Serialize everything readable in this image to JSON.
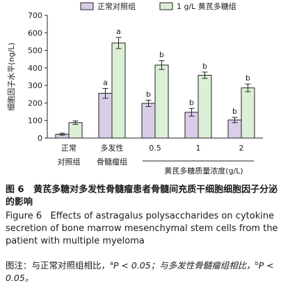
{
  "chart_data": {
    "type": "bar",
    "ylabel": "细胞因子水平(ng/L)",
    "ylim": [
      0,
      700
    ],
    "yticks": [
      0,
      100,
      200,
      300,
      400,
      500,
      600,
      700
    ],
    "legend_position": "top",
    "categories": [
      [
        "正常",
        "对照组"
      ],
      [
        "多发性",
        "骨髓瘤组"
      ],
      [
        "0.5"
      ],
      [
        "1"
      ],
      [
        "2"
      ]
    ],
    "group_label": "黄芪多糖质量浓度(g/L)",
    "series": [
      {
        "name": "正常对照组",
        "color": "#d9cde8",
        "values": [
          22,
          255,
          198,
          147,
          103
        ],
        "errors": [
          6,
          28,
          18,
          22,
          15
        ],
        "annotations": [
          "",
          "a",
          "b",
          "b",
          "b"
        ]
      },
      {
        "name": "1 g/L 黄芪多糖组",
        "color": "#dcefd7",
        "values": [
          88,
          542,
          416,
          358,
          286
        ],
        "errors": [
          10,
          32,
          25,
          18,
          22
        ],
        "annotations": [
          "",
          "a",
          "b",
          "b",
          "b"
        ]
      }
    ]
  },
  "caption": {
    "cn_label": "图 6",
    "cn_title": "黄芪多糖对多发性骨髓瘤患者骨髓间充质干细胞细胞因子分泌的影响",
    "en_label": "Figure 6",
    "en_title": "Effects of astragalus polysaccharides on cytokine secretion of bone marrow mesenchymal stem cells from the patient with multiple myeloma",
    "note_prefix": "图注：与正常对照组相比，",
    "note_a_sup": "a",
    "note_a": "P < 0.05；与多发性骨髓瘤组相比，",
    "note_b_sup": "b",
    "note_b": "P < 0.05。"
  }
}
